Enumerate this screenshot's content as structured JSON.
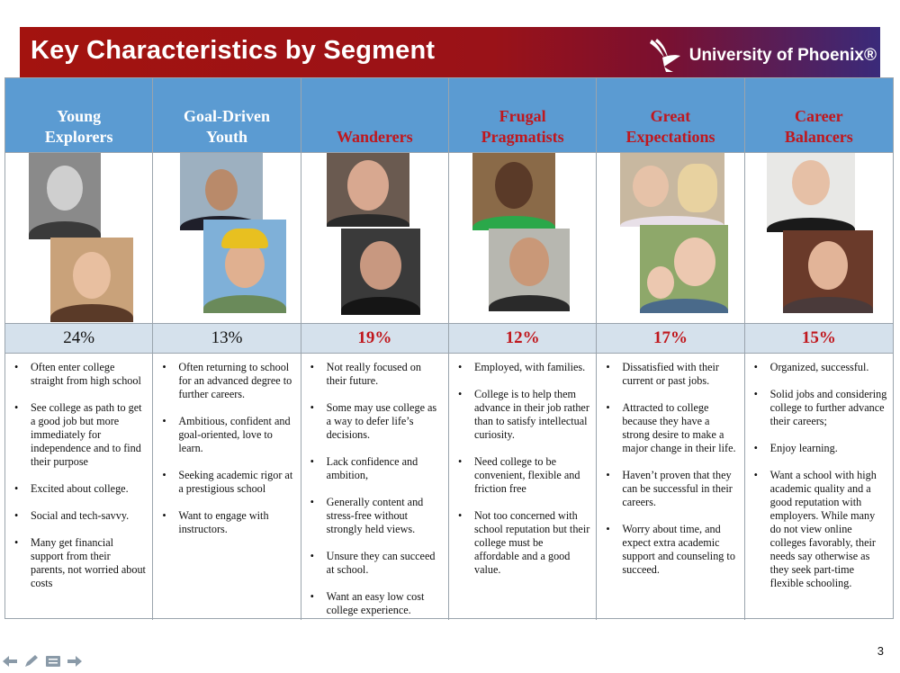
{
  "header": {
    "title": "Key Characteristics by Segment",
    "logo_text": "University of Phoenix®"
  },
  "segments": [
    {
      "name": "Young Explorers",
      "percent": "24%",
      "bullets": [
        "Often enter college straight from high school",
        "See college as path to get a good job but more immediately for independence and to find their purpose",
        "Excited about college.",
        "Social and tech-savvy.",
        "Many get financial support from their parents, not worried about costs"
      ]
    },
    {
      "name": "Goal-Driven Youth",
      "percent": "13%",
      "bullets": [
        "Often returning to school for an advanced degree to further careers.",
        "Ambitious, confident and goal-oriented,  love to learn.",
        "Seeking academic rigor at a prestigious school",
        "Want to engage with instructors."
      ]
    },
    {
      "name": "Wanderers",
      "percent": "19%",
      "bullets": [
        "Not really focused on their future.",
        "Some may use college as a way to defer life’s decisions.",
        "Lack confidence and ambition,",
        "Generally content and stress-free without strongly held views.",
        "Unsure they can succeed at school.",
        "Want an easy low cost college experience."
      ]
    },
    {
      "name": "Frugal Pragmatists",
      "percent": "12%",
      "bullets": [
        "Employed, with families.",
        "College is to help them advance in their job rather than to satisfy intellectual curiosity.",
        "Need college to be convenient, flexible  and friction free",
        "Not too concerned with school reputation but their college must be affordable and a good value."
      ]
    },
    {
      "name": "Great Expectations",
      "percent": "17%",
      "bullets": [
        "Dissatisfied with their current or past jobs.",
        "Attracted to college because they have a strong desire to make a major change in their life.",
        "Haven’t proven that they can be successful in their careers.",
        "Worry about time, and expect extra academic support and counseling to succeed."
      ]
    },
    {
      "name": "Career Balancers",
      "percent": "15%",
      "bullets": [
        "Organized, successful.",
        "Solid jobs and considering college to further advance their careers;",
        "Enjoy learning.",
        "Want a school with high academic quality and a good reputation with employers.  While many do not view online colleges favorably, their needs say otherwise as they seek part-time flexible schooling."
      ]
    }
  ],
  "page_number": "3",
  "colors": {
    "header_blue": "#5b9bd2",
    "percent_row": "#d5e1ec",
    "accent_red": "#c0171d"
  },
  "icons": [
    "back-arrow-icon",
    "pen-icon",
    "menu-icon",
    "forward-arrow-icon"
  ]
}
